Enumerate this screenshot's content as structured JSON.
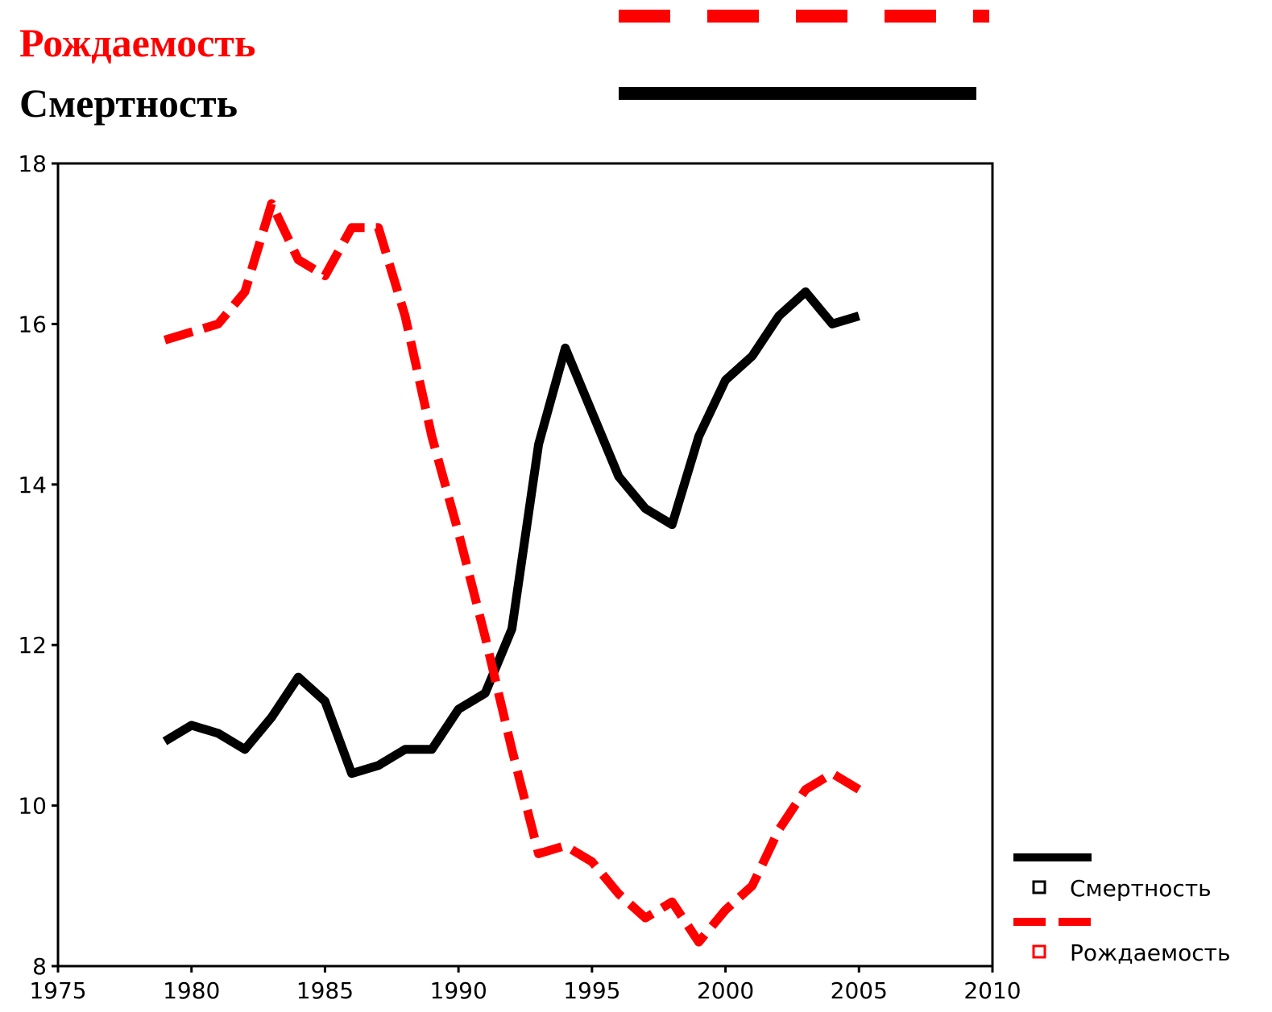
{
  "chart_data": {
    "type": "line",
    "x": [
      1979,
      1980,
      1981,
      1982,
      1983,
      1984,
      1985,
      1986,
      1987,
      1988,
      1989,
      1990,
      1991,
      1992,
      1993,
      1994,
      1995,
      1996,
      1997,
      1998,
      1999,
      2000,
      2001,
      2002,
      2003,
      2004,
      2005
    ],
    "series": [
      {
        "name": "Смертность",
        "color": "#000000",
        "dash": "solid",
        "values": [
          10.8,
          11.0,
          10.9,
          10.7,
          11.1,
          11.6,
          11.3,
          10.4,
          10.5,
          10.7,
          10.7,
          11.2,
          11.4,
          12.2,
          14.5,
          15.7,
          14.9,
          14.1,
          13.7,
          13.5,
          14.6,
          15.3,
          15.6,
          16.1,
          16.4,
          16.0,
          16.1
        ]
      },
      {
        "name": "Рождаемость",
        "color": "#ff0000",
        "dash": "dashed",
        "values": [
          15.8,
          15.9,
          16.0,
          16.4,
          17.5,
          16.8,
          16.6,
          17.2,
          17.2,
          16.1,
          14.6,
          13.4,
          12.1,
          10.7,
          9.4,
          9.5,
          9.3,
          8.9,
          8.6,
          8.8,
          8.3,
          8.7,
          9.0,
          9.7,
          10.2,
          10.4,
          10.2
        ]
      }
    ],
    "xlim": [
      1975,
      2010
    ],
    "xticks": [
      1975,
      1980,
      1985,
      1990,
      1995,
      2000,
      2005,
      2010
    ],
    "ylim": [
      8,
      18
    ],
    "yticks": [
      8,
      10,
      12,
      14,
      16,
      18
    ]
  }
}
